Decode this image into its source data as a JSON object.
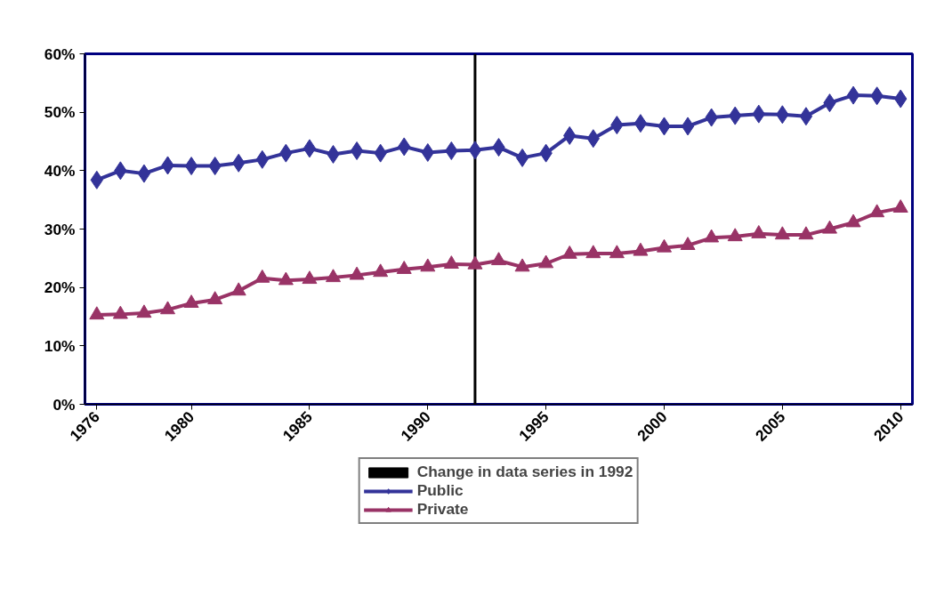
{
  "chart_data": {
    "type": "line",
    "x": [
      1976,
      1977,
      1978,
      1979,
      1980,
      1981,
      1982,
      1983,
      1984,
      1985,
      1986,
      1987,
      1988,
      1989,
      1990,
      1991,
      1992,
      1993,
      1994,
      1995,
      1996,
      1997,
      1998,
      1999,
      2000,
      2001,
      2002,
      2003,
      2004,
      2005,
      2006,
      2007,
      2008,
      2009,
      2010
    ],
    "series": [
      {
        "name": "Public",
        "color": "#333399",
        "marker": "diamond",
        "values": [
          38.4,
          40.0,
          39.5,
          40.9,
          40.8,
          40.8,
          41.3,
          41.9,
          43.0,
          43.8,
          42.8,
          43.4,
          43.0,
          44.1,
          43.1,
          43.4,
          43.5,
          44.0,
          42.2,
          43.0,
          46.0,
          45.5,
          47.8,
          48.1,
          47.6,
          47.6,
          49.1,
          49.4,
          49.7,
          49.6,
          49.3,
          51.6,
          52.9,
          52.8,
          52.3
        ]
      },
      {
        "name": "Private",
        "color": "#993366",
        "marker": "triangle",
        "values": [
          15.3,
          15.4,
          15.6,
          16.2,
          17.3,
          17.9,
          19.4,
          21.6,
          21.2,
          21.4,
          21.7,
          22.1,
          22.6,
          23.1,
          23.5,
          24.0,
          23.9,
          24.6,
          23.5,
          24.1,
          25.7,
          25.8,
          25.8,
          26.2,
          26.8,
          27.2,
          28.5,
          28.7,
          29.2,
          29.0,
          29.0,
          30.0,
          31.1,
          32.8,
          33.6
        ]
      }
    ],
    "xlim": [
      1975.5,
      2010.5
    ],
    "xticks": [
      1976,
      1980,
      1985,
      1990,
      1995,
      2000,
      2005,
      2010
    ],
    "ylim": [
      0,
      60
    ],
    "yticks": [
      {
        "value": 0,
        "label": "0%"
      },
      {
        "value": 10,
        "label": "10%"
      },
      {
        "value": 20,
        "label": "20%"
      },
      {
        "value": 30,
        "label": "30%"
      },
      {
        "value": 40,
        "label": "40%"
      },
      {
        "value": 50,
        "label": "50%"
      },
      {
        "value": 60,
        "label": "60%"
      }
    ],
    "ref_lines": [
      {
        "axis": "x",
        "value": 1992,
        "label": "Change in data series in 1992",
        "color": "#000000"
      }
    ],
    "grid": false,
    "legend": "bottom",
    "line_style": "solid"
  }
}
